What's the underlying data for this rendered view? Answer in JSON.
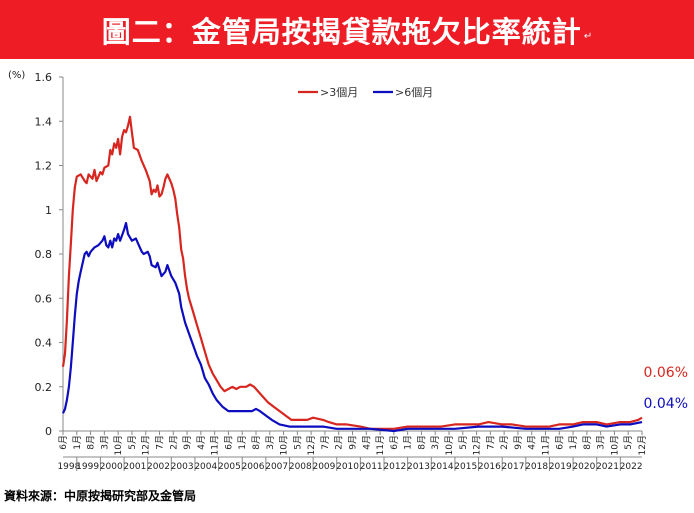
{
  "banner": {
    "title": "圖二：金管局按揭貸款拖欠比率統計",
    "mark": "↵"
  },
  "source_note": "資料來源：中原按揭研究部及金管局",
  "colors": {
    "banner": "#ee1c25",
    "series_3m": "#d7261f",
    "series_6m": "#0d0dbf"
  },
  "chart_data": {
    "type": "line",
    "unit_label": "(%)",
    "ylim": [
      0,
      1.6
    ],
    "yticks": [
      "0",
      "0.2",
      "0.4",
      "0.6",
      "0.8",
      "1",
      "1.2",
      "1.4",
      "1.6"
    ],
    "grid": false,
    "legend_position": "top",
    "xlim": [
      "1998-06",
      "2022-12"
    ],
    "year_labels": [
      "1998",
      "1999",
      "2000",
      "2001",
      "2002",
      "2003",
      "2004",
      "2005",
      "2006",
      "2007",
      "2008",
      "2009",
      "2010",
      "2011",
      "2012",
      "2013",
      "2014",
      "2015",
      "2016",
      "2017",
      "2018",
      "2019",
      "2020",
      "2021",
      "2022"
    ],
    "month_ticks": [
      {
        "date": "1998-06",
        "label": "6月"
      },
      {
        "date": "1999-01",
        "label": "1月"
      },
      {
        "date": "1999-08",
        "label": "8月"
      },
      {
        "date": "2000-03",
        "label": "3月"
      },
      {
        "date": "2000-10",
        "label": "10月"
      },
      {
        "date": "2001-05",
        "label": "5月"
      },
      {
        "date": "2001-12",
        "label": "12月"
      },
      {
        "date": "2002-07",
        "label": "7月"
      },
      {
        "date": "2003-02",
        "label": "2月"
      },
      {
        "date": "2003-09",
        "label": "9月"
      },
      {
        "date": "2004-04",
        "label": "4月"
      },
      {
        "date": "2004-11",
        "label": "11月"
      },
      {
        "date": "2005-06",
        "label": "6月"
      },
      {
        "date": "2006-01",
        "label": "1月"
      },
      {
        "date": "2006-08",
        "label": "8月"
      },
      {
        "date": "2007-03",
        "label": "3月"
      },
      {
        "date": "2007-10",
        "label": "10月"
      },
      {
        "date": "2008-05",
        "label": "5月"
      },
      {
        "date": "2008-12",
        "label": "12月"
      },
      {
        "date": "2009-07",
        "label": "7月"
      },
      {
        "date": "2010-02",
        "label": "2月"
      },
      {
        "date": "2010-09",
        "label": "9月"
      },
      {
        "date": "2011-04",
        "label": "4月"
      },
      {
        "date": "2011-11",
        "label": "11月"
      },
      {
        "date": "2012-06",
        "label": "6月"
      },
      {
        "date": "2013-01",
        "label": "1月"
      },
      {
        "date": "2013-08",
        "label": "8月"
      },
      {
        "date": "2014-03",
        "label": "3月"
      },
      {
        "date": "2014-10",
        "label": "10月"
      },
      {
        "date": "2015-05",
        "label": "5月"
      },
      {
        "date": "2015-12",
        "label": "12月"
      },
      {
        "date": "2016-07",
        "label": "7月"
      },
      {
        "date": "2017-02",
        "label": "2月"
      },
      {
        "date": "2017-09",
        "label": "9月"
      },
      {
        "date": "2018-04",
        "label": "4月"
      },
      {
        "date": "2018-11",
        "label": "11月"
      },
      {
        "date": "2019-06",
        "label": "6月"
      },
      {
        "date": "2020-01",
        "label": "1月"
      },
      {
        "date": "2020-08",
        "label": "8月"
      },
      {
        "date": "2021-03",
        "label": "3月"
      },
      {
        "date": "2021-10",
        "label": "10月"
      },
      {
        "date": "2022-05",
        "label": "5月"
      },
      {
        "date": "2022-12",
        "label": "12月"
      }
    ],
    "series": [
      {
        "name": ">3個月",
        "color": "#d7261f",
        "end_label": "0.06%",
        "points": [
          [
            "1998-06",
            0.29
          ],
          [
            "1998-07",
            0.35
          ],
          [
            "1998-08",
            0.5
          ],
          [
            "1998-09",
            0.7
          ],
          [
            "1998-10",
            0.85
          ],
          [
            "1998-11",
            1.0
          ],
          [
            "1998-12",
            1.1
          ],
          [
            "1999-01",
            1.15
          ],
          [
            "1999-03",
            1.16
          ],
          [
            "1999-05",
            1.13
          ],
          [
            "1999-06",
            1.12
          ],
          [
            "1999-07",
            1.16
          ],
          [
            "1999-09",
            1.14
          ],
          [
            "1999-10",
            1.18
          ],
          [
            "1999-11",
            1.13
          ],
          [
            "2000-01",
            1.17
          ],
          [
            "2000-02",
            1.16
          ],
          [
            "2000-03",
            1.19
          ],
          [
            "2000-05",
            1.2
          ],
          [
            "2000-06",
            1.27
          ],
          [
            "2000-07",
            1.25
          ],
          [
            "2000-08",
            1.3
          ],
          [
            "2000-09",
            1.28
          ],
          [
            "2000-10",
            1.32
          ],
          [
            "2000-11",
            1.25
          ],
          [
            "2000-12",
            1.33
          ],
          [
            "2001-01",
            1.36
          ],
          [
            "2001-02",
            1.35
          ],
          [
            "2001-03",
            1.38
          ],
          [
            "2001-04",
            1.42
          ],
          [
            "2001-05",
            1.35
          ],
          [
            "2001-06",
            1.28
          ],
          [
            "2001-08",
            1.27
          ],
          [
            "2001-10",
            1.22
          ],
          [
            "2001-12",
            1.18
          ],
          [
            "2002-02",
            1.13
          ],
          [
            "2002-03",
            1.07
          ],
          [
            "2002-04",
            1.09
          ],
          [
            "2002-05",
            1.08
          ],
          [
            "2002-06",
            1.11
          ],
          [
            "2002-07",
            1.06
          ],
          [
            "2002-08",
            1.07
          ],
          [
            "2002-09",
            1.1
          ],
          [
            "2002-10",
            1.14
          ],
          [
            "2002-11",
            1.16
          ],
          [
            "2003-01",
            1.12
          ],
          [
            "2003-02",
            1.09
          ],
          [
            "2003-03",
            1.05
          ],
          [
            "2003-04",
            0.98
          ],
          [
            "2003-05",
            0.92
          ],
          [
            "2003-06",
            0.82
          ],
          [
            "2003-07",
            0.78
          ],
          [
            "2003-08",
            0.7
          ],
          [
            "2003-09",
            0.64
          ],
          [
            "2003-10",
            0.6
          ],
          [
            "2003-12",
            0.54
          ],
          [
            "2004-02",
            0.48
          ],
          [
            "2004-04",
            0.42
          ],
          [
            "2004-06",
            0.36
          ],
          [
            "2004-08",
            0.3
          ],
          [
            "2004-10",
            0.26
          ],
          [
            "2004-12",
            0.23
          ],
          [
            "2005-02",
            0.2
          ],
          [
            "2005-04",
            0.18
          ],
          [
            "2005-06",
            0.19
          ],
          [
            "2005-08",
            0.2
          ],
          [
            "2005-10",
            0.19
          ],
          [
            "2005-12",
            0.2
          ],
          [
            "2006-03",
            0.2
          ],
          [
            "2006-05",
            0.21
          ],
          [
            "2006-07",
            0.2
          ],
          [
            "2006-09",
            0.18
          ],
          [
            "2006-11",
            0.16
          ],
          [
            "2007-02",
            0.13
          ],
          [
            "2007-05",
            0.11
          ],
          [
            "2007-08",
            0.09
          ],
          [
            "2007-11",
            0.07
          ],
          [
            "2008-02",
            0.05
          ],
          [
            "2008-06",
            0.05
          ],
          [
            "2008-10",
            0.05
          ],
          [
            "2009-01",
            0.06
          ],
          [
            "2009-06",
            0.05
          ],
          [
            "2009-09",
            0.04
          ],
          [
            "2010-01",
            0.03
          ],
          [
            "2010-06",
            0.03
          ],
          [
            "2011-01",
            0.02
          ],
          [
            "2011-06",
            0.01
          ],
          [
            "2012-01",
            0.01
          ],
          [
            "2012-06",
            0.01
          ],
          [
            "2013-01",
            0.02
          ],
          [
            "2013-06",
            0.02
          ],
          [
            "2014-01",
            0.02
          ],
          [
            "2014-06",
            0.02
          ],
          [
            "2015-01",
            0.03
          ],
          [
            "2015-06",
            0.03
          ],
          [
            "2016-01",
            0.03
          ],
          [
            "2016-06",
            0.04
          ],
          [
            "2017-01",
            0.03
          ],
          [
            "2017-06",
            0.03
          ],
          [
            "2018-01",
            0.02
          ],
          [
            "2018-06",
            0.02
          ],
          [
            "2019-01",
            0.02
          ],
          [
            "2019-06",
            0.03
          ],
          [
            "2020-01",
            0.03
          ],
          [
            "2020-06",
            0.04
          ],
          [
            "2021-01",
            0.04
          ],
          [
            "2021-06",
            0.03
          ],
          [
            "2022-01",
            0.04
          ],
          [
            "2022-06",
            0.04
          ],
          [
            "2022-10",
            0.05
          ],
          [
            "2022-12",
            0.06
          ]
        ]
      },
      {
        "name": ">6個月",
        "color": "#0d0dbf",
        "end_label": "0.04%",
        "points": [
          [
            "1998-06",
            0.08
          ],
          [
            "1998-07",
            0.1
          ],
          [
            "1998-08",
            0.14
          ],
          [
            "1998-09",
            0.2
          ],
          [
            "1998-10",
            0.29
          ],
          [
            "1998-11",
            0.4
          ],
          [
            "1998-12",
            0.52
          ],
          [
            "1999-01",
            0.62
          ],
          [
            "1999-02",
            0.68
          ],
          [
            "1999-03",
            0.72
          ],
          [
            "1999-04",
            0.76
          ],
          [
            "1999-05",
            0.8
          ],
          [
            "1999-06",
            0.81
          ],
          [
            "1999-07",
            0.79
          ],
          [
            "1999-08",
            0.81
          ],
          [
            "1999-10",
            0.83
          ],
          [
            "1999-12",
            0.84
          ],
          [
            "2000-02",
            0.86
          ],
          [
            "2000-03",
            0.88
          ],
          [
            "2000-04",
            0.84
          ],
          [
            "2000-05",
            0.83
          ],
          [
            "2000-06",
            0.86
          ],
          [
            "2000-07",
            0.83
          ],
          [
            "2000-08",
            0.87
          ],
          [
            "2000-09",
            0.86
          ],
          [
            "2000-10",
            0.89
          ],
          [
            "2000-11",
            0.86
          ],
          [
            "2001-01",
            0.91
          ],
          [
            "2001-02",
            0.94
          ],
          [
            "2001-03",
            0.89
          ],
          [
            "2001-05",
            0.86
          ],
          [
            "2001-07",
            0.87
          ],
          [
            "2001-08",
            0.85
          ],
          [
            "2001-10",
            0.81
          ],
          [
            "2001-11",
            0.8
          ],
          [
            "2002-01",
            0.81
          ],
          [
            "2002-02",
            0.79
          ],
          [
            "2002-03",
            0.75
          ],
          [
            "2002-05",
            0.74
          ],
          [
            "2002-06",
            0.76
          ],
          [
            "2002-07",
            0.73
          ],
          [
            "2002-08",
            0.7
          ],
          [
            "2002-10",
            0.72
          ],
          [
            "2002-11",
            0.75
          ],
          [
            "2003-01",
            0.7
          ],
          [
            "2003-03",
            0.67
          ],
          [
            "2003-05",
            0.62
          ],
          [
            "2003-06",
            0.56
          ],
          [
            "2003-08",
            0.49
          ],
          [
            "2003-10",
            0.44
          ],
          [
            "2003-12",
            0.39
          ],
          [
            "2004-02",
            0.34
          ],
          [
            "2004-04",
            0.3
          ],
          [
            "2004-06",
            0.24
          ],
          [
            "2004-08",
            0.21
          ],
          [
            "2004-10",
            0.17
          ],
          [
            "2004-12",
            0.14
          ],
          [
            "2005-03",
            0.11
          ],
          [
            "2005-06",
            0.09
          ],
          [
            "2005-09",
            0.09
          ],
          [
            "2006-01",
            0.09
          ],
          [
            "2006-06",
            0.09
          ],
          [
            "2006-08",
            0.1
          ],
          [
            "2006-10",
            0.09
          ],
          [
            "2007-01",
            0.07
          ],
          [
            "2007-04",
            0.05
          ],
          [
            "2007-08",
            0.03
          ],
          [
            "2008-01",
            0.02
          ],
          [
            "2008-06",
            0.02
          ],
          [
            "2009-01",
            0.02
          ],
          [
            "2009-06",
            0.02
          ],
          [
            "2010-01",
            0.01
          ],
          [
            "2010-06",
            0.01
          ],
          [
            "2011-06",
            0.01
          ],
          [
            "2012-06",
            0.0
          ],
          [
            "2013-01",
            0.01
          ],
          [
            "2014-01",
            0.01
          ],
          [
            "2015-01",
            0.01
          ],
          [
            "2016-01",
            0.02
          ],
          [
            "2017-01",
            0.02
          ],
          [
            "2018-01",
            0.01
          ],
          [
            "2019-01",
            0.01
          ],
          [
            "2019-06",
            0.01
          ],
          [
            "2020-01",
            0.02
          ],
          [
            "2020-06",
            0.03
          ],
          [
            "2021-01",
            0.03
          ],
          [
            "2021-06",
            0.02
          ],
          [
            "2022-01",
            0.03
          ],
          [
            "2022-06",
            0.03
          ],
          [
            "2022-12",
            0.04
          ]
        ]
      }
    ]
  }
}
